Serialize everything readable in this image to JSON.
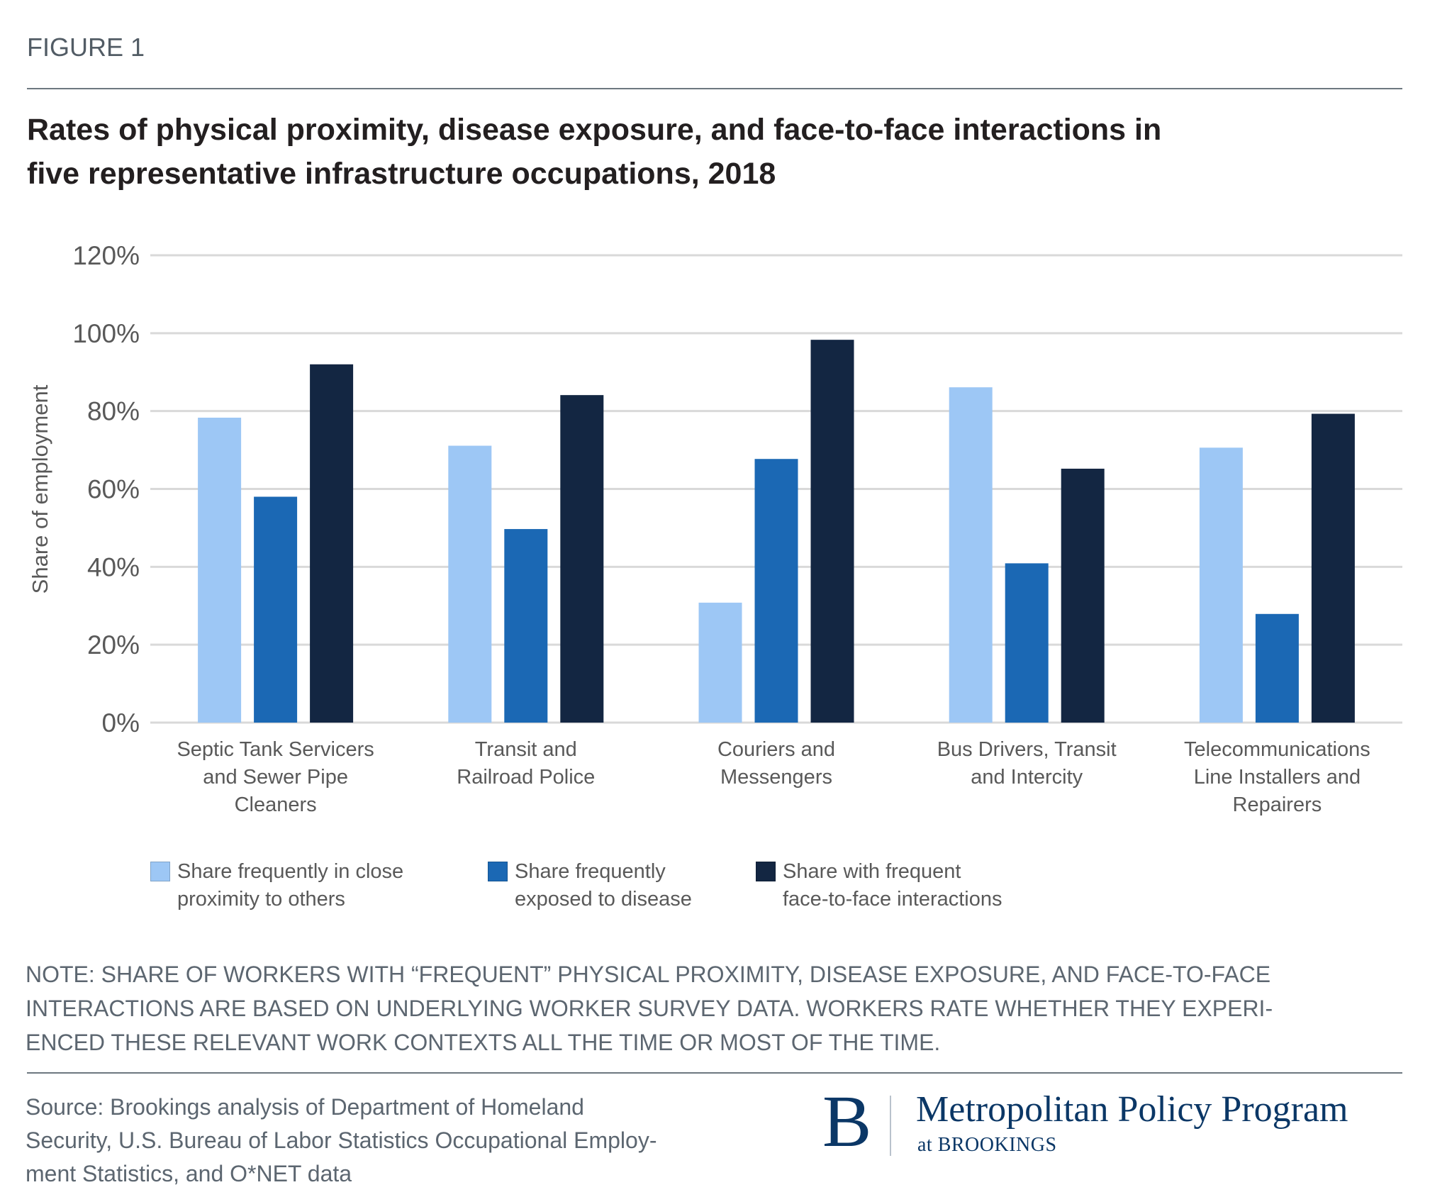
{
  "figure_label": "FIGURE 1",
  "chart_data": {
    "type": "bar",
    "title": "Rates of physical proximity, disease exposure, and face-to-face interactions in five representative infrastructure occupations, 2018",
    "title_lines": [
      "Rates of physical proximity, disease exposure, and face-to-face interactions in",
      "five representative infrastructure occupations, 2018"
    ],
    "xlabel": "",
    "ylabel": "Share of employment",
    "ylim": [
      0,
      120
    ],
    "yticks": [
      0,
      20,
      40,
      60,
      80,
      100,
      120
    ],
    "ytick_labels": [
      "0%",
      "20%",
      "40%",
      "60%",
      "80%",
      "100%",
      "120%"
    ],
    "grid": true,
    "legend_position": "bottom",
    "categories": [
      "Septic Tank Servicers and Sewer Pipe Cleaners",
      "Transit and Railroad Police",
      "Couriers and Messengers",
      "Bus Drivers, Transit and Intercity",
      "Telecommunications Line Installers and Repairers"
    ],
    "category_label_lines": [
      [
        "Septic Tank Servicers",
        "and Sewer Pipe",
        "Cleaners"
      ],
      [
        "Transit and",
        "Railroad Police"
      ],
      [
        "Couriers and",
        "Messengers"
      ],
      [
        "Bus Drivers, Transit",
        "and Intercity"
      ],
      [
        "Telecommunications",
        "Line Installers and",
        "Repairers"
      ]
    ],
    "series": [
      {
        "name": "Share frequently in close proximity to others",
        "legend_lines": [
          "Share frequently in close",
          "proximity to others"
        ],
        "color": "#9dc7f5",
        "values": [
          78.3,
          71.1,
          30.8,
          86.1,
          70.6
        ]
      },
      {
        "name": "Share frequently exposed to disease",
        "legend_lines": [
          "Share frequently",
          "exposed to disease"
        ],
        "color": "#1b68b4",
        "values": [
          58.0,
          49.7,
          67.7,
          40.9,
          27.9
        ]
      },
      {
        "name": "Share with frequent face-to-face interactions",
        "legend_lines": [
          "Share with frequent",
          "face-to-face interactions"
        ],
        "color": "#132642",
        "values": [
          92.0,
          84.1,
          98.3,
          65.2,
          79.3
        ]
      }
    ]
  },
  "note": "NOTE: SHARE OF WORKERS WITH “FREQUENT” PHYSICAL PROXIMITY, DISEASE EXPOSURE, AND FACE-TO-FACE INTERACTIONS ARE BASED ON UNDERLYING WORKER SURVEY DATA. WORKERS RATE WHETHER THEY EXPERIENCED THESE RELEVANT WORK CONTEXTS ALL THE TIME OR MOST OF THE TIME.",
  "note_lines": [
    "NOTE: SHARE OF WORKERS WITH “FREQUENT” PHYSICAL PROXIMITY, DISEASE EXPOSURE, AND FACE-TO-FACE",
    "INTERACTIONS ARE BASED ON UNDERLYING WORKER SURVEY DATA. WORKERS RATE WHETHER THEY EXPERI-",
    "ENCED THESE RELEVANT WORK CONTEXTS ALL THE TIME OR MOST OF THE TIME."
  ],
  "source_lines": [
    "Source: Brookings analysis of Department of Homeland",
    "Security, U.S. Bureau of Labor Statistics Occupational Employ-",
    "ment Statistics, and O*NET data"
  ],
  "logo": {
    "mark": "B",
    "title": "Metropolitan Policy Program",
    "subtitle": "at BROOKINGS",
    "color": "#0b3766"
  }
}
